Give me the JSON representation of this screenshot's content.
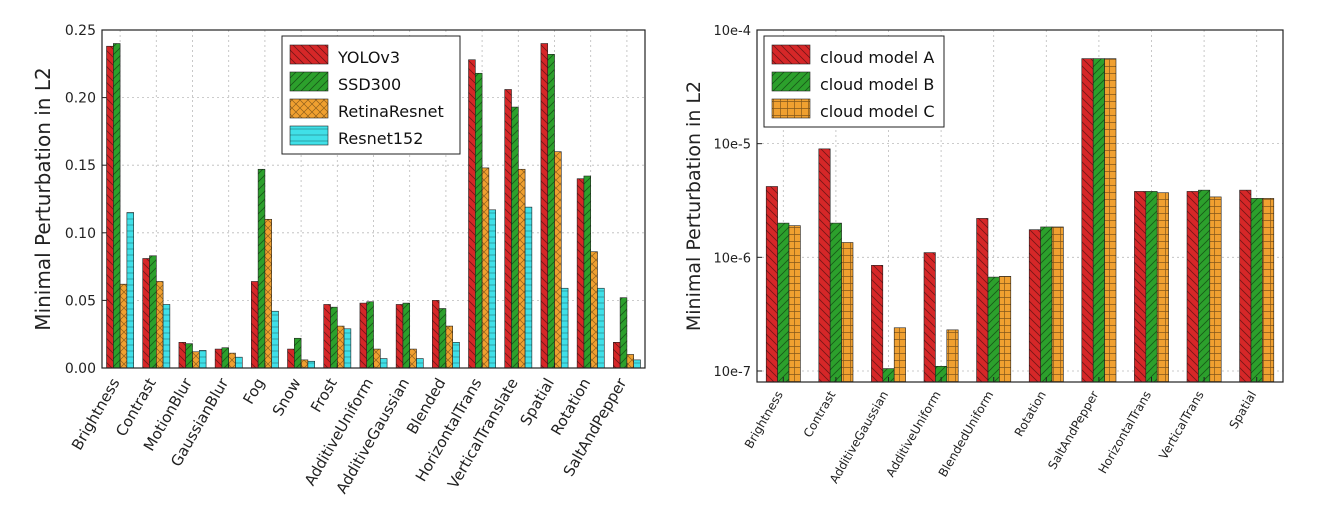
{
  "chart_data": [
    {
      "type": "bar",
      "title": "",
      "xlabel": "",
      "ylabel": "Minimal Perturbation in L2",
      "ylim": [
        0,
        0.25
      ],
      "yticks": [
        0.0,
        0.05,
        0.1,
        0.15,
        0.2,
        0.25
      ],
      "ytick_labels": [
        "0.00",
        "0.05",
        "0.10",
        "0.15",
        "0.20",
        "0.25"
      ],
      "grid": true,
      "legend_position": "top-center",
      "categories": [
        "Brightness",
        "Contrast",
        "MotionBlur",
        "GaussianBlur",
        "Fog",
        "Snow",
        "Frost",
        "AdditiveUniform",
        "AdditiveGaussian",
        "Blended",
        "HorizontalTrans",
        "VerticalTranslate",
        "Spatial",
        "Rotation",
        "SaltAndPepper"
      ],
      "series": [
        {
          "name": "YOLOv3",
          "color": "#d62728",
          "values": [
            0.238,
            0.081,
            0.019,
            0.014,
            0.064,
            0.014,
            0.047,
            0.048,
            0.047,
            0.05,
            0.228,
            0.206,
            0.24,
            0.14,
            0.019
          ]
        },
        {
          "name": "SSD300",
          "color": "#2ca02c",
          "values": [
            0.24,
            0.083,
            0.018,
            0.015,
            0.147,
            0.022,
            0.045,
            0.049,
            0.048,
            0.044,
            0.218,
            0.193,
            0.232,
            0.142,
            0.052
          ]
        },
        {
          "name": "RetinaResnet",
          "color": "#f0a030",
          "values": [
            0.062,
            0.064,
            0.012,
            0.011,
            0.11,
            0.006,
            0.031,
            0.014,
            0.014,
            0.031,
            0.148,
            0.147,
            0.16,
            0.086,
            0.01
          ]
        },
        {
          "name": "Resnet152",
          "color": "#40e0e8",
          "values": [
            0.115,
            0.047,
            0.013,
            0.008,
            0.042,
            0.005,
            0.029,
            0.007,
            0.007,
            0.019,
            0.117,
            0.119,
            0.059,
            0.059,
            0.006
          ]
        }
      ]
    },
    {
      "type": "bar",
      "title": "",
      "xlabel": "",
      "ylabel": "Minimal Perturbation in L2",
      "yscale": "log",
      "ylim": [
        8e-08,
        0.0001
      ],
      "yticks": [
        1e-07,
        1e-06,
        1e-05,
        0.0001
      ],
      "ytick_labels": [
        "10e-7",
        "10e-6",
        "10e-5",
        "10e-4"
      ],
      "grid": true,
      "legend_position": "top-left",
      "categories": [
        "Brightness",
        "Contrast",
        "AdditiveGaussian",
        "AdditiveUniform",
        "BlendedUniform",
        "Rotation",
        "SaltAndPepper",
        "HorizontalTrans",
        "VerticalTrans",
        "Spatial"
      ],
      "series": [
        {
          "name": "cloud model A",
          "color": "#d62728",
          "values": [
            4.2e-06,
            9e-06,
            8.5e-07,
            1.1e-06,
            2.2e-06,
            1.75e-06,
            5.6e-05,
            3.8e-06,
            3.8e-06,
            3.9e-06
          ]
        },
        {
          "name": "cloud model B",
          "color": "#2ca02c",
          "values": [
            2e-06,
            2e-06,
            1.05e-07,
            1.1e-07,
            6.7e-07,
            1.85e-06,
            5.6e-05,
            3.8e-06,
            3.9e-06,
            3.3e-06
          ]
        },
        {
          "name": "cloud model C",
          "color": "#f0a030",
          "values": [
            1.9e-06,
            1.35e-06,
            2.4e-07,
            2.3e-07,
            6.8e-07,
            1.85e-06,
            5.6e-05,
            3.7e-06,
            3.4e-06,
            3.3e-06
          ]
        }
      ]
    }
  ]
}
